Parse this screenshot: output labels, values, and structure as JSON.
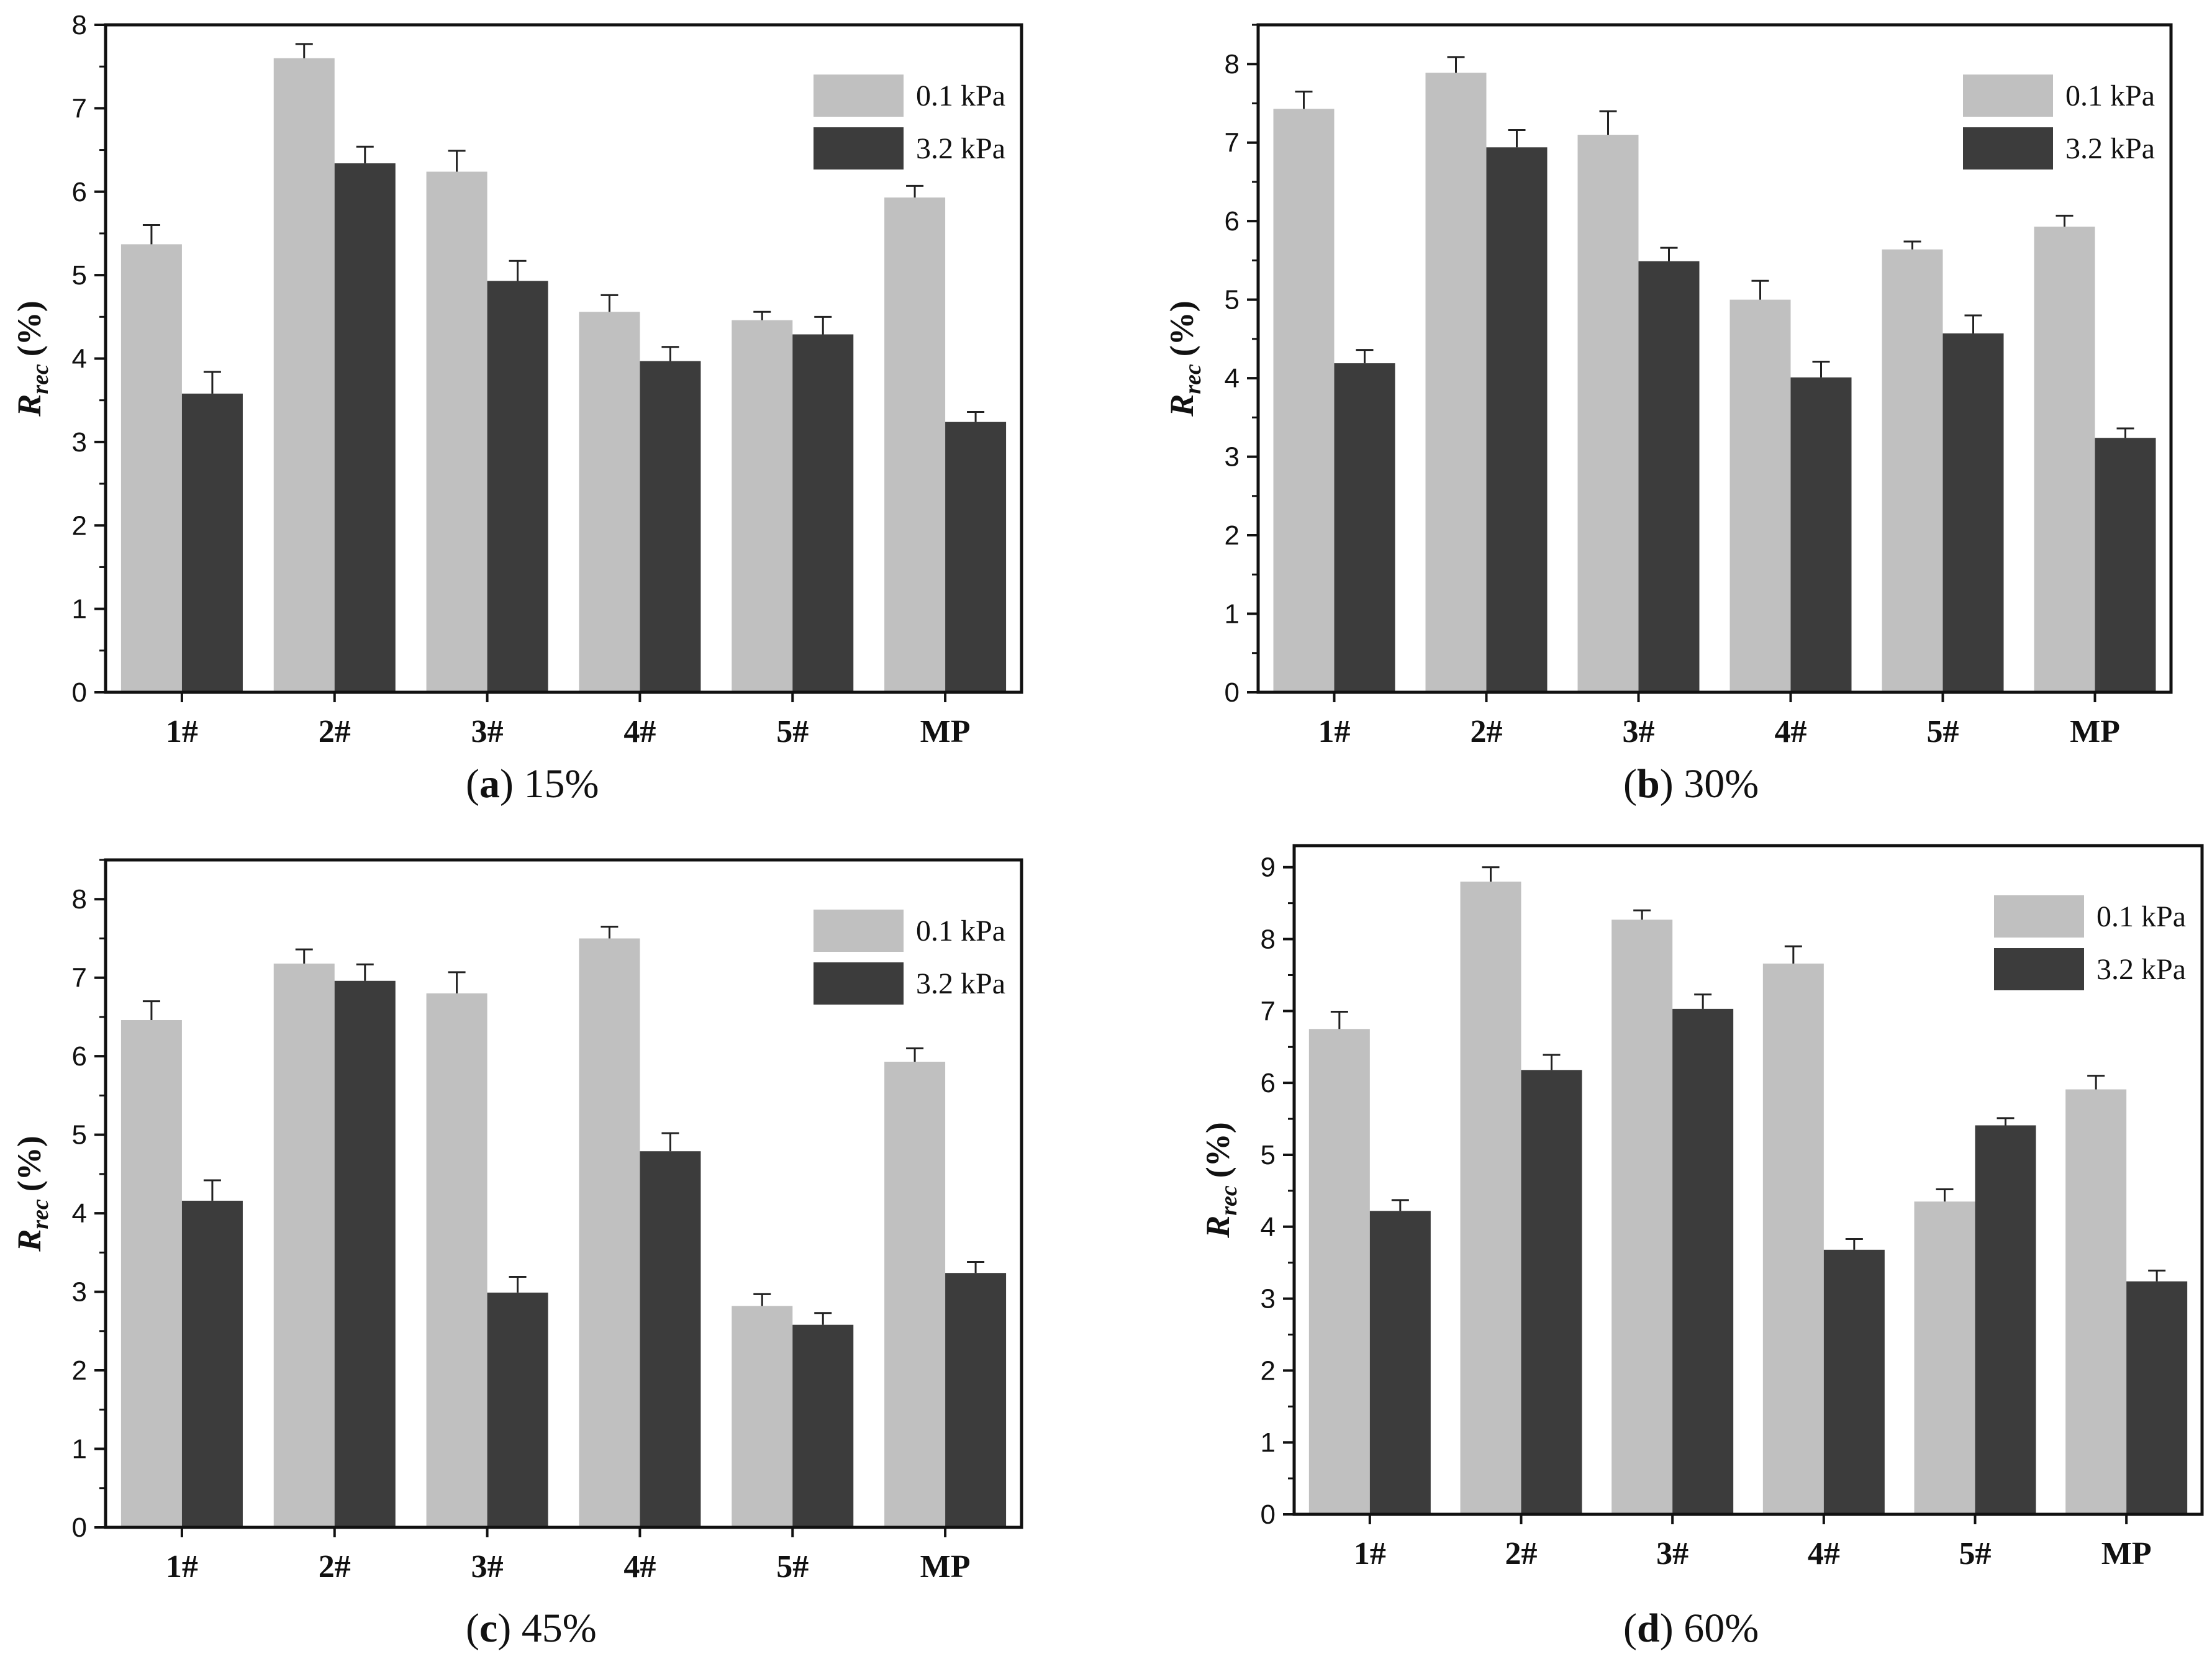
{
  "colors": {
    "series_0": "#c0c0c0",
    "series_1": "#3c3c3c"
  },
  "chart_data": [
    {
      "type": "bar",
      "panel_letter": "a",
      "panel_value": "15%",
      "categories": [
        "1#",
        "2#",
        "3#",
        "4#",
        "5#",
        "MP"
      ],
      "ylabel_main": "R",
      "ylabel_sub": "rec",
      "ylabel_unit": "(%)",
      "ylim": [
        0,
        8
      ],
      "yticks": [
        "0",
        "1",
        "2",
        "3",
        "4",
        "5",
        "6",
        "7",
        "8"
      ],
      "legend": [
        "0.1 kPa",
        "3.2 kPa"
      ],
      "series": [
        {
          "name": "0.1 kPa",
          "values": [
            5.37,
            7.6,
            6.24,
            4.56,
            4.46,
            5.93
          ],
          "errors": [
            0.23,
            0.17,
            0.25,
            0.2,
            0.1,
            0.14
          ]
        },
        {
          "name": "3.2 kPa",
          "values": [
            3.58,
            6.34,
            4.93,
            3.97,
            4.29,
            3.24
          ],
          "errors": [
            0.26,
            0.2,
            0.24,
            0.17,
            0.21,
            0.12
          ]
        }
      ]
    },
    {
      "type": "bar",
      "panel_letter": "b",
      "panel_value": "30%",
      "categories": [
        "1#",
        "2#",
        "3#",
        "4#",
        "5#",
        "MP"
      ],
      "ylabel_main": "R",
      "ylabel_sub": "rec",
      "ylabel_unit": "(%)",
      "ylim": [
        0,
        8.5
      ],
      "yticks": [
        "0",
        "1",
        "2",
        "3",
        "4",
        "5",
        "6",
        "7",
        "8"
      ],
      "legend": [
        "0.1 kPa",
        "3.2 kPa"
      ],
      "series": [
        {
          "name": "0.1 kPa",
          "values": [
            7.43,
            7.89,
            7.1,
            5.0,
            5.64,
            5.93
          ],
          "errors": [
            0.22,
            0.2,
            0.3,
            0.24,
            0.1,
            0.14
          ]
        },
        {
          "name": "3.2 kPa",
          "values": [
            4.19,
            6.94,
            5.49,
            4.01,
            4.57,
            3.24
          ],
          "errors": [
            0.17,
            0.22,
            0.17,
            0.2,
            0.23,
            0.12
          ]
        }
      ]
    },
    {
      "type": "bar",
      "panel_letter": "c",
      "panel_value": "45%",
      "categories": [
        "1#",
        "2#",
        "3#",
        "4#",
        "5#",
        "MP"
      ],
      "ylabel_main": "R",
      "ylabel_sub": "rec",
      "ylabel_unit": "(%)",
      "ylim": [
        0,
        8.5
      ],
      "yticks": [
        "0",
        "1",
        "2",
        "3",
        "4",
        "5",
        "6",
        "7",
        "8"
      ],
      "legend": [
        "0.1 kPa",
        "3.2 kPa"
      ],
      "series": [
        {
          "name": "0.1 kPa",
          "values": [
            6.46,
            7.18,
            6.8,
            7.5,
            2.82,
            5.93
          ],
          "errors": [
            0.24,
            0.18,
            0.27,
            0.15,
            0.15,
            0.17
          ]
        },
        {
          "name": "3.2 kPa",
          "values": [
            4.16,
            6.96,
            2.99,
            4.79,
            2.58,
            3.24
          ],
          "errors": [
            0.26,
            0.21,
            0.2,
            0.23,
            0.15,
            0.14
          ]
        }
      ]
    },
    {
      "type": "bar",
      "panel_letter": "d",
      "panel_value": "60%",
      "categories": [
        "1#",
        "2#",
        "3#",
        "4#",
        "5#",
        "MP"
      ],
      "ylabel_main": "R",
      "ylabel_sub": "rec",
      "ylabel_unit": "(%)",
      "ylim": [
        0,
        9.3
      ],
      "yticks": [
        "0",
        "1",
        "2",
        "3",
        "4",
        "5",
        "6",
        "7",
        "8",
        "9"
      ],
      "legend": [
        "0.1 kPa",
        "3.2 kPa"
      ],
      "series": [
        {
          "name": "0.1 kPa",
          "values": [
            6.75,
            8.8,
            8.27,
            7.66,
            4.35,
            5.91
          ],
          "errors": [
            0.24,
            0.2,
            0.13,
            0.24,
            0.17,
            0.19
          ]
        },
        {
          "name": "3.2 kPa",
          "values": [
            4.22,
            6.18,
            7.03,
            3.68,
            5.41,
            3.24
          ],
          "errors": [
            0.15,
            0.21,
            0.2,
            0.15,
            0.1,
            0.15
          ]
        }
      ]
    }
  ]
}
